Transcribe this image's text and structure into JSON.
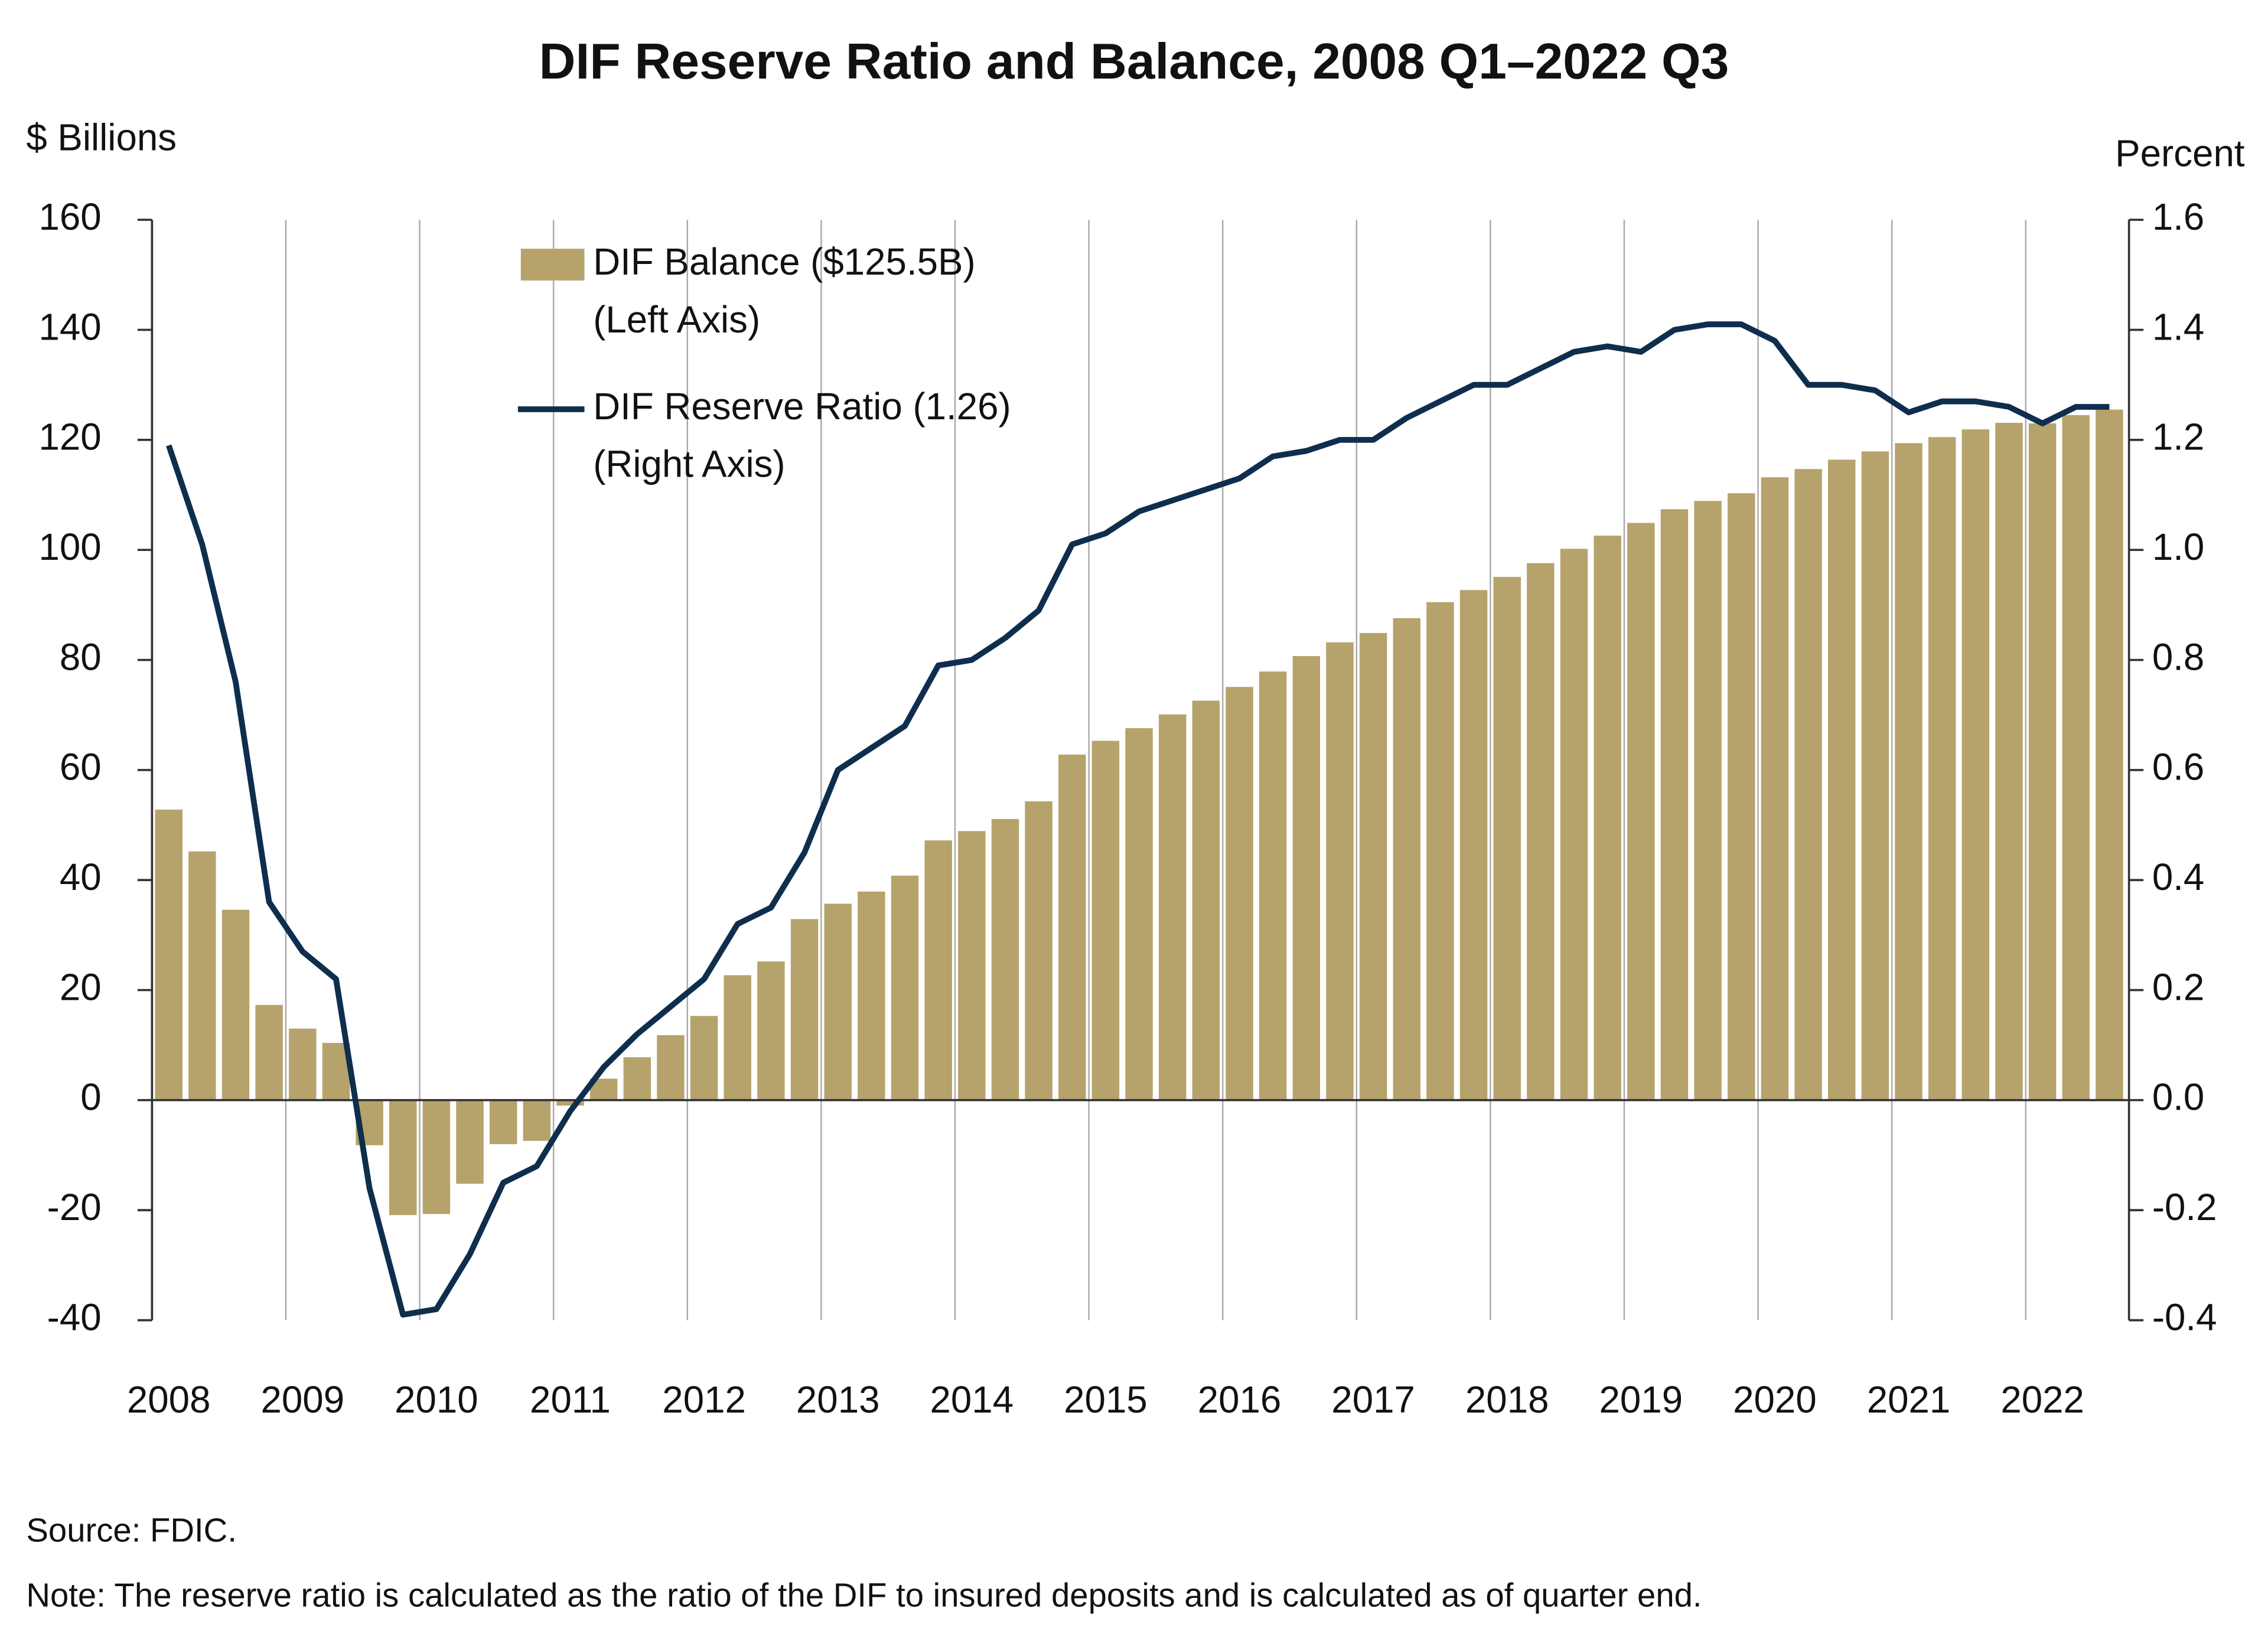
{
  "chart_data": {
    "type": "bar_line",
    "title": "DIF Reserve Ratio and Balance, 2008 Q1–2022 Q3",
    "y_label": "$ Billions",
    "y2_label": "Percent",
    "source": "Source: FDIC.",
    "note": "Note: The reserve ratio is calculated as the ratio of the DIF to insured deposits and is calculated as of quarter end.",
    "categories": [
      "2008",
      null,
      null,
      null,
      "2009",
      null,
      null,
      null,
      "2010",
      null,
      null,
      null,
      "2011",
      null,
      null,
      null,
      "2012",
      null,
      null,
      null,
      "2013",
      null,
      null,
      null,
      "2014",
      null,
      null,
      null,
      "2015",
      null,
      null,
      null,
      "2016",
      null,
      null,
      null,
      "2017",
      null,
      null,
      null,
      "2018",
      null,
      null,
      null,
      "2019",
      null,
      null,
      null,
      "2020",
      null,
      null,
      null,
      "2021",
      null,
      null,
      null,
      "2022",
      null,
      null
    ],
    "series": [
      {
        "name": "DIF Balance ($125.5B)",
        "axis_note": "(Left Axis)",
        "type": "bar",
        "color": "#b5a36b",
        "values": [
          52.8,
          45.2,
          34.6,
          17.3,
          13.0,
          10.4,
          -8.2,
          -20.9,
          -20.7,
          -15.2,
          -8.0,
          -7.4,
          -1.0,
          3.9,
          7.8,
          11.8,
          15.3,
          22.7,
          25.2,
          32.9,
          35.7,
          37.9,
          40.8,
          47.2,
          48.9,
          51.1,
          54.3,
          62.8,
          65.3,
          67.6,
          70.1,
          72.6,
          75.1,
          77.9,
          80.7,
          83.2,
          84.9,
          87.6,
          90.5,
          92.7,
          95.1,
          97.6,
          100.2,
          102.6,
          104.9,
          107.4,
          108.9,
          110.3,
          113.2,
          114.7,
          116.4,
          117.9,
          119.4,
          120.5,
          121.9,
          123.1,
          123.0,
          124.5,
          125.5
        ]
      },
      {
        "name": "DIF Reserve Ratio (1.26)",
        "axis_note": "(Right Axis)",
        "type": "line",
        "axis": "y2",
        "color": "#0e2e4e",
        "values": [
          1.19,
          1.01,
          0.76,
          0.36,
          0.27,
          0.22,
          -0.16,
          -0.39,
          -0.38,
          -0.28,
          -0.15,
          -0.12,
          -0.02,
          0.06,
          0.12,
          0.17,
          0.22,
          0.32,
          0.35,
          0.45,
          0.6,
          0.64,
          0.68,
          0.79,
          0.8,
          0.84,
          0.89,
          1.01,
          1.03,
          1.07,
          1.09,
          1.11,
          1.13,
          1.17,
          1.18,
          1.2,
          1.2,
          1.24,
          1.27,
          1.3,
          1.3,
          1.33,
          1.36,
          1.37,
          1.36,
          1.4,
          1.41,
          1.41,
          1.38,
          1.3,
          1.3,
          1.29,
          1.25,
          1.27,
          1.27,
          1.26,
          1.23,
          1.26,
          1.26
        ]
      }
    ],
    "ylim": [
      -40,
      160
    ],
    "yticks": [
      -40,
      -20,
      0,
      20,
      40,
      60,
      80,
      100,
      120,
      140,
      160
    ],
    "y2lim": [
      -0.4,
      1.6
    ],
    "y2ticks": [
      -0.4,
      -0.2,
      {
        "value": 0,
        "label": "0.0"
      },
      0.2,
      0.4,
      0.6,
      0.8,
      {
        "value": 1,
        "label": "1.0"
      },
      1.2,
      1.4,
      1.6
    ],
    "grid": "x"
  }
}
